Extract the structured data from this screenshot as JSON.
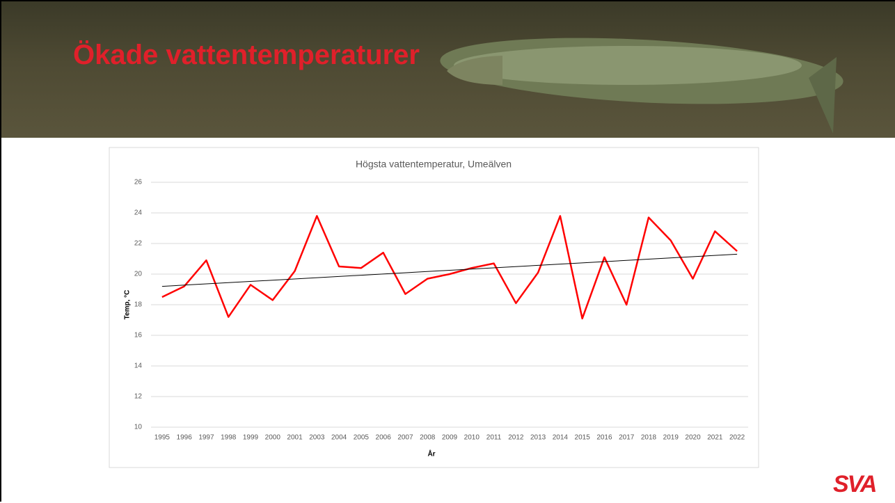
{
  "header": {
    "title": "Ökade vattentemperaturer"
  },
  "logo": "SVA",
  "chart_data": {
    "type": "line",
    "title": "Högsta vattentemperatur, Umeälven",
    "x_label": "År",
    "y_label": "Temp, °C",
    "categories": [
      "1995",
      "1996",
      "1997",
      "1998",
      "1999",
      "2000",
      "2001",
      "2003",
      "2004",
      "2005",
      "2006",
      "2007",
      "2008",
      "2009",
      "2010",
      "2011",
      "2012",
      "2013",
      "2014",
      "2015",
      "2016",
      "2017",
      "2018",
      "2019",
      "2020",
      "2021",
      "2022"
    ],
    "values": [
      18.5,
      19.2,
      20.9,
      17.2,
      19.3,
      18.3,
      20.2,
      23.8,
      20.5,
      20.4,
      21.4,
      18.7,
      19.7,
      20.0,
      20.4,
      20.7,
      18.1,
      20.1,
      23.8,
      17.1,
      21.1,
      18.0,
      23.7,
      22.2,
      19.7,
      22.8,
      21.5
    ],
    "color": "#ff0000",
    "trend": {
      "start": 19.2,
      "end": 21.3,
      "color": "#000000"
    },
    "ylim": [
      10,
      26
    ],
    "yticks": [
      10,
      12,
      14,
      16,
      18,
      20,
      22,
      24,
      26
    ],
    "grid": true
  }
}
